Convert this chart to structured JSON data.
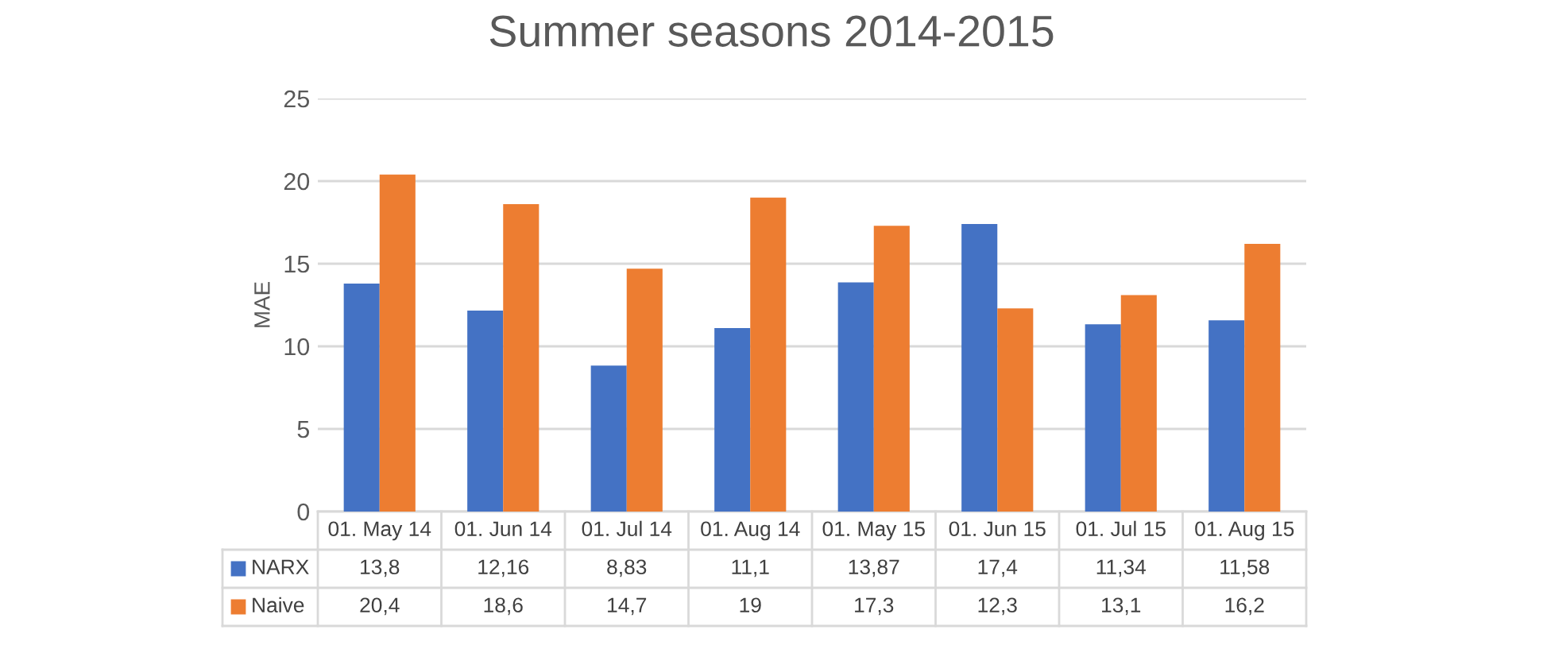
{
  "chart_data": {
    "type": "bar",
    "title": "Summer seasons 2014-2015",
    "ylabel": "MAE",
    "categories": [
      "01. May 14",
      "01. Jun 14",
      "01. Jul 14",
      "01. Aug 14",
      "01. May 15",
      "01. Jun 15",
      "01. Jul 15",
      "01. Aug 15"
    ],
    "series": [
      {
        "name": "NARX",
        "color": "#4472c4",
        "values": [
          13.8,
          12.16,
          8.83,
          11.1,
          13.87,
          17.4,
          11.34,
          11.58
        ],
        "value_labels": [
          "13,8",
          "12,16",
          "8,83",
          "11,1",
          "13,87",
          "17,4",
          "11,34",
          "11,58"
        ]
      },
      {
        "name": "Naive",
        "color": "#ed7d31",
        "values": [
          20.4,
          18.6,
          14.7,
          19,
          17.3,
          12.3,
          13.1,
          16.2
        ],
        "value_labels": [
          "20,4",
          "18,6",
          "14,7",
          "19",
          "17,3",
          "12,3",
          "13,1",
          "16,2"
        ]
      }
    ],
    "ylim": [
      0,
      25
    ],
    "yticks": [
      0,
      5,
      10,
      15,
      20,
      25
    ],
    "grid": "y",
    "legend": "bottom"
  }
}
